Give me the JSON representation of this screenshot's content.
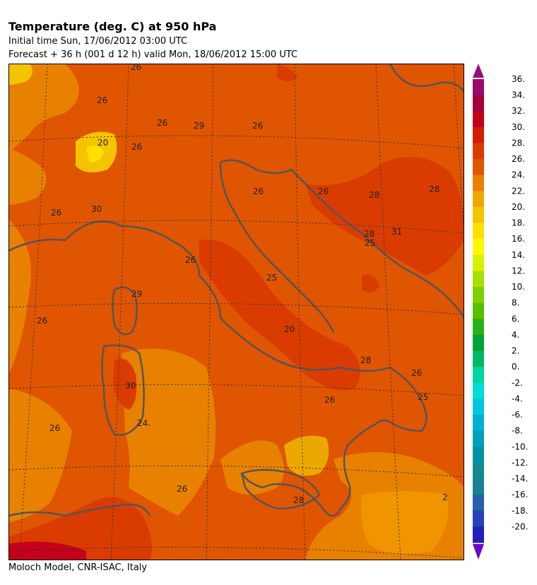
{
  "header": {
    "title": "Temperature (deg. C) at 950 hPa",
    "initial_time": "Initial time  Sun, 17/06/2012  03:00 UTC",
    "forecast": "Forecast  +  36 h  (001 d 12 h)  valid Mon, 18/06/2012 15:00 UTC"
  },
  "footer": {
    "credit": "Moloch Model, CNR-ISAC, Italy"
  },
  "map": {
    "contour_labels": [
      "26",
      "26",
      "26",
      "26",
      "29",
      "26",
      "20",
      "26",
      "30",
      "26",
      "26",
      "28",
      "28",
      "31",
      "25",
      "26",
      "28",
      "29",
      "25",
      "20",
      "28",
      "26",
      "26",
      "30",
      "24.",
      "26",
      "26",
      "28",
      "26",
      "25",
      "2"
    ]
  },
  "legend": {
    "labels": [
      "36.",
      "34.",
      "32.",
      "30.",
      "28.",
      "26.",
      "24.",
      "22.",
      "20.",
      "18.",
      "16.",
      "14.",
      "12.",
      "10.",
      "8.",
      "6.",
      "4.",
      "2.",
      "0.",
      "-2.",
      "-4.",
      "-6.",
      "-8.",
      "-10.",
      "-12.",
      "-14.",
      "-16.",
      "-18.",
      "-20."
    ],
    "colors": [
      "#9b0a6d",
      "#a3003f",
      "#c4001a",
      "#d21f00",
      "#da3c00",
      "#e05500",
      "#e88100",
      "#eda800",
      "#f5c400",
      "#ffe100",
      "#fff800",
      "#d6f200",
      "#a9e000",
      "#7fd000",
      "#57c000",
      "#28b218",
      "#00a33a",
      "#00b865",
      "#00d59b",
      "#00ddd7",
      "#00c7df",
      "#00b0cf",
      "#00a0b8",
      "#0092a4",
      "#118a94",
      "#1d7f95",
      "#2560a8",
      "#2443b6",
      "#251ebe"
    ],
    "top_color": "#940d7e",
    "bottom_color": "#6a0ac4"
  }
}
